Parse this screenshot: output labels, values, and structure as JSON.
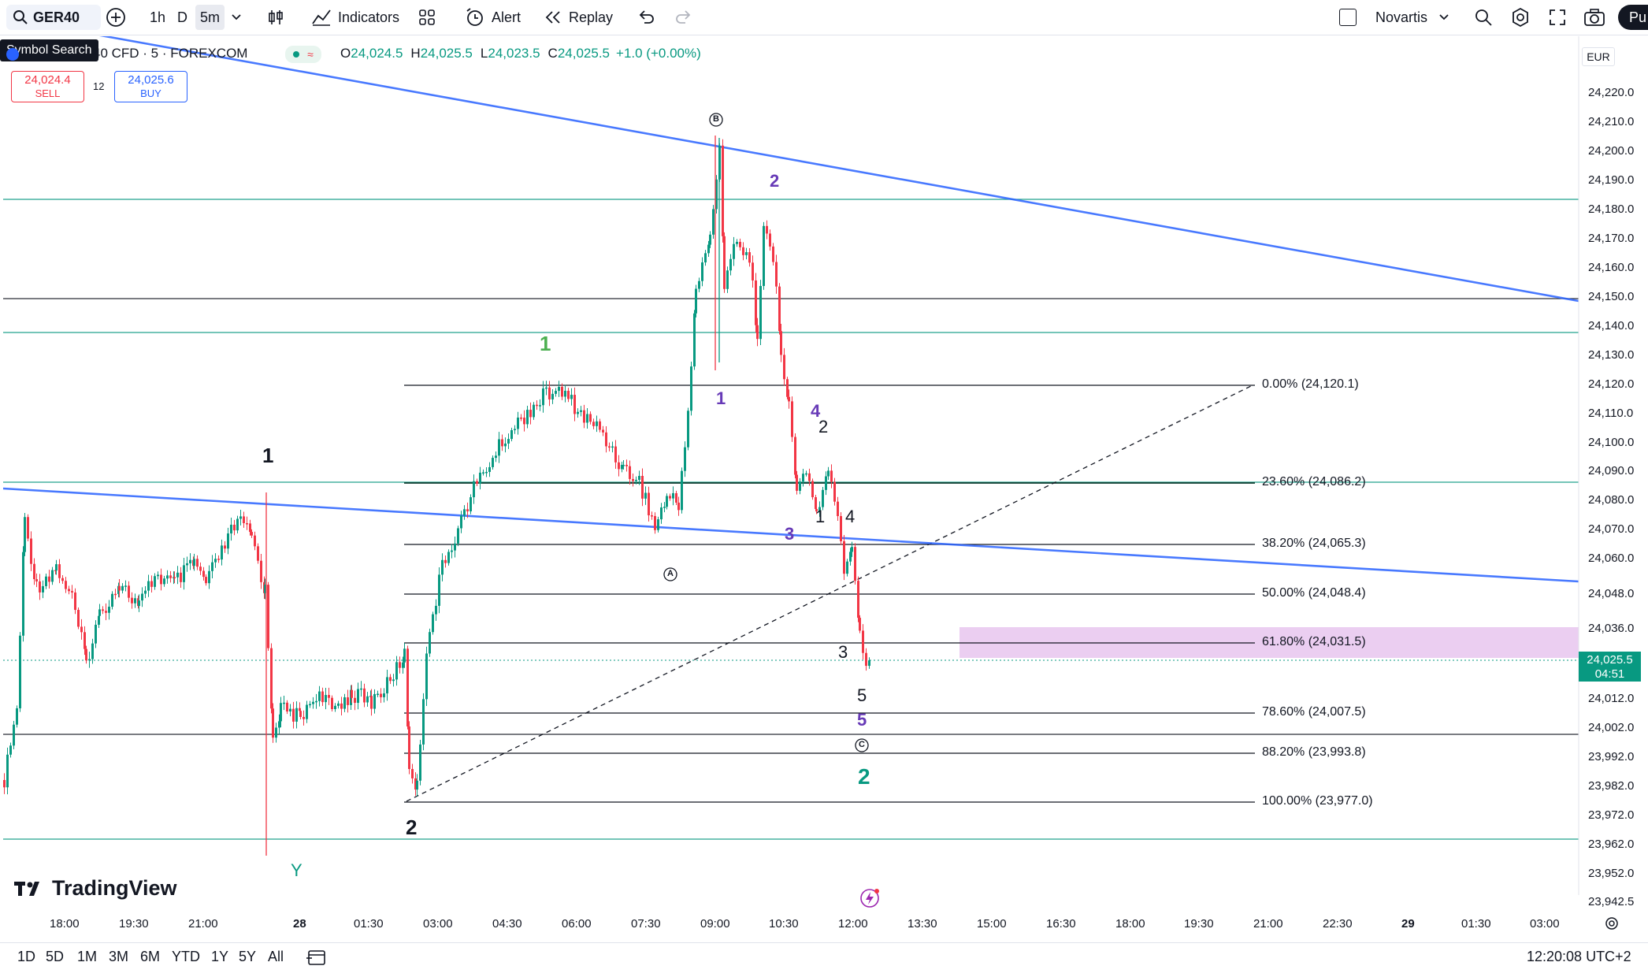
{
  "toolbar": {
    "symbol": "GER40",
    "intervals": [
      "1h",
      "D",
      "5m"
    ],
    "indicators_label": "Indicators",
    "alert_label": "Alert",
    "replay_label": "Replay",
    "watchlist_label": "Novartis",
    "publish_label": "Pu"
  },
  "tooltip": "Symbol Search",
  "legend": {
    "instrument": "40 CFD · 5 · FOREXCOM",
    "o_label": "O",
    "o_value": "24,024.5",
    "h_label": "H",
    "h_value": "24,025.5",
    "l_label": "L",
    "l_value": "24,023.5",
    "c_label": "C",
    "c_value": "24,025.5",
    "change": "+1.0 (+0.00%)"
  },
  "trade": {
    "sell_price": "24,024.4",
    "sell_label": "SELL",
    "spread": "12",
    "buy_price": "24,025.6",
    "buy_label": "BUY"
  },
  "currency": "EUR",
  "price_axis": [
    "24,220.0",
    "24,210.0",
    "24,200.0",
    "24,190.0",
    "24,180.0",
    "24,170.0",
    "24,160.0",
    "24,150.0",
    "24,140.0",
    "24,130.0",
    "24,120.0",
    "24,110.0",
    "24,100.0",
    "24,090.0",
    "24,080.0",
    "24,070.0",
    "24,060.0",
    "24,048.0",
    "24,036.0",
    "24,012.0",
    "24,002.0",
    "23,992.0",
    "23,982.0",
    "23,972.0",
    "23,962.0",
    "23,952.0",
    "23,942.5"
  ],
  "current_price": {
    "value": "24,025.5",
    "countdown": "04:51",
    "color": "#089981"
  },
  "time_axis": [
    "18:00",
    "19:30",
    "21:00",
    "28",
    "01:30",
    "03:00",
    "04:30",
    "06:00",
    "07:30",
    "09:00",
    "10:30",
    "12:00",
    "13:30",
    "15:00",
    "16:30",
    "18:00",
    "19:30",
    "21:00",
    "22:30",
    "29",
    "01:30",
    "03:00"
  ],
  "fib_levels": [
    {
      "label": "0.00% (24,120.1)"
    },
    {
      "label": "23.60% (24,086.2)"
    },
    {
      "label": "38.20% (24,065.3)"
    },
    {
      "label": "50.00% (24,048.4)"
    },
    {
      "label": "61.80% (24,031.5)"
    },
    {
      "label": "78.60% (24,007.5)"
    },
    {
      "label": "88.20% (23,993.8)"
    },
    {
      "label": "100.00% (23,977.0)"
    }
  ],
  "wave_labels": {
    "black_1": "1",
    "black_2": "2",
    "y": "Y",
    "green_1": "1",
    "green_2": "2",
    "purple_2": "2",
    "purple_1": "1",
    "purple_4": "4",
    "purple_3": "3",
    "purple_5": "5",
    "small_2": "2",
    "small_1": "1",
    "small_4": "4",
    "small_3": "3",
    "small_5": "5",
    "circle_a": "A",
    "circle_b": "B",
    "circle_c": "C"
  },
  "branding": "TradingView",
  "ranges": [
    "1D",
    "5D",
    "1M",
    "3M",
    "6M",
    "YTD",
    "1Y",
    "5Y",
    "All"
  ],
  "clock": "12:20:08 UTC+2",
  "colors": {
    "up": "#089981",
    "down": "#f23645",
    "trendline": "#2962ff",
    "fib_zone": "#e7c6ef",
    "purple": "#673ab7"
  }
}
